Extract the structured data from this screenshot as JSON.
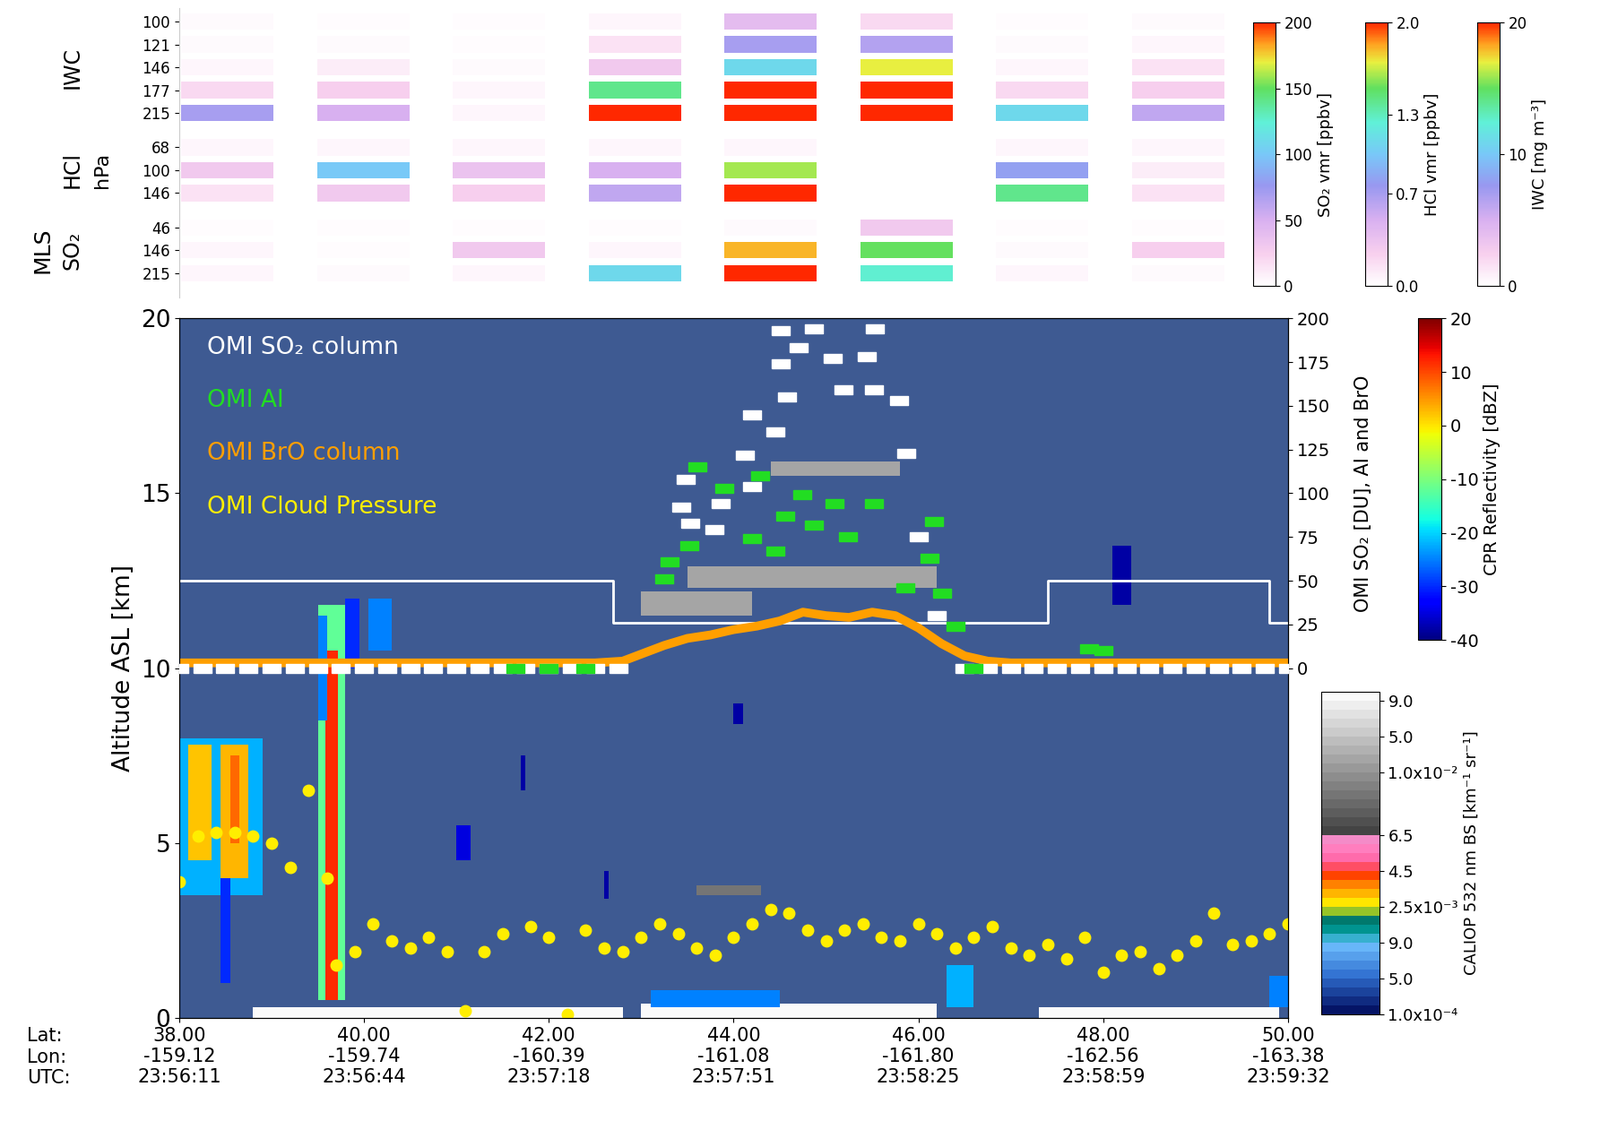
{
  "chart_data": {
    "type": "curtain",
    "xlim": [
      38,
      50
    ],
    "xticks": [
      {
        "value": 38,
        "label": "38.00\n-159.12\n23:56:11"
      },
      {
        "value": 40,
        "label": "40.00\n-159.74\n23:56:44"
      },
      {
        "value": 42,
        "label": "42.00\n-160.39\n23:57:18"
      },
      {
        "value": 44,
        "label": "44.00\n-161.08\n23:57:51"
      },
      {
        "value": 46,
        "label": "46.00\n-161.80\n23:58:25"
      },
      {
        "value": 48,
        "label": "48.00\n-162.56\n23:58:59"
      },
      {
        "value": 50,
        "label": "50.00\n-163.38\n23:59:32"
      }
    ],
    "x_row_labels": [
      "Lat:",
      "Lon:",
      "UTC:"
    ],
    "y_label": "Altitude ASL [km]",
    "ylim": [
      0,
      20
    ],
    "yticks": [
      0,
      5,
      10,
      15,
      20
    ],
    "y2_label": "OMI SO₂ [DU], AI and BrO",
    "y2lim": [
      -200,
      200
    ],
    "y2ticks": [
      0,
      25,
      50,
      75,
      100,
      125,
      150,
      175,
      200
    ],
    "series": [
      {
        "name": "OMI SO₂ column",
        "type": "scatter",
        "color": "#ffffff",
        "marker": "rectangle",
        "axis": "y2",
        "x": [
          38.0,
          38.25,
          38.5,
          38.75,
          39.0,
          39.25,
          39.5,
          39.75,
          40.0,
          40.25,
          40.5,
          40.75,
          41.0,
          41.25,
          41.5,
          41.75,
          42.0,
          42.25,
          42.5,
          42.75,
          43.43,
          43.48,
          43.53,
          43.79,
          43.86,
          44.12,
          44.2,
          44.2,
          44.45,
          44.51,
          44.51,
          44.58,
          44.7,
          44.87,
          45.07,
          45.19,
          45.44,
          45.52,
          45.53,
          45.79,
          45.87,
          46.0,
          46.2,
          46.5,
          46.75,
          47.0,
          47.25,
          47.5,
          47.75,
          48.0,
          48.25,
          48.5,
          48.75,
          49.0,
          49.25,
          49.5,
          49.75,
          50.0
        ],
        "values": [
          0,
          0,
          0,
          0,
          0,
          0,
          0,
          0,
          0,
          0,
          0,
          0,
          0,
          0,
          0,
          0,
          0,
          0,
          0,
          0,
          92,
          108,
          83,
          79,
          94,
          122,
          104,
          145,
          135,
          193,
          174,
          155,
          183,
          194,
          177,
          159,
          178,
          159,
          194,
          153,
          123,
          75,
          30,
          0,
          0,
          0,
          0,
          0,
          0,
          0,
          0,
          0,
          0,
          0,
          0,
          0,
          0,
          0
        ]
      },
      {
        "name": "OMI AI",
        "type": "scatter",
        "color": "#22dd22",
        "marker": "rectangle",
        "axis": "y2",
        "x": [
          41.64,
          42.0,
          42.4,
          43.25,
          43.31,
          43.52,
          43.61,
          43.9,
          44.2,
          44.29,
          44.45,
          44.56,
          44.74,
          44.87,
          45.09,
          45.24,
          45.52,
          45.86,
          46.12,
          46.17,
          46.26,
          46.4,
          46.6,
          47.85,
          48.0
        ],
        "values": [
          0,
          0,
          0,
          51,
          61,
          70,
          115,
          103,
          74,
          110,
          67,
          87,
          99,
          82,
          94,
          75,
          94,
          46,
          63,
          84,
          43,
          24,
          0,
          11,
          10
        ]
      },
      {
        "name": "OMI BrO column",
        "type": "line",
        "color": "#ff9f00",
        "line_style": "solid",
        "axis": "y2",
        "x": [
          38.0,
          38.5,
          39.0,
          39.5,
          40.0,
          40.5,
          41.0,
          41.5,
          42.0,
          42.5,
          42.8,
          43.0,
          43.25,
          43.5,
          43.75,
          44.0,
          44.25,
          44.5,
          44.75,
          45.0,
          45.25,
          45.5,
          45.75,
          46.0,
          46.25,
          46.5,
          46.75,
          47.0,
          47.5,
          48.0,
          48.5,
          49.0,
          49.5,
          50.0
        ],
        "values": [
          3,
          3,
          3,
          3,
          3,
          3,
          3,
          3,
          3,
          3,
          4,
          8,
          13,
          17,
          19,
          22,
          24,
          27,
          32,
          30,
          29,
          32,
          30,
          23,
          14,
          7,
          4,
          3,
          3,
          3,
          3,
          3,
          3,
          3
        ]
      },
      {
        "name": "OMI Cloud Pressure",
        "type": "scatter",
        "color": "#ffee00",
        "marker": "ellipse",
        "x": [
          38.0,
          38.2,
          38.4,
          38.6,
          38.8,
          39.0,
          39.2,
          39.4,
          39.6,
          39.7,
          39.9,
          40.1,
          40.3,
          40.5,
          40.7,
          40.9,
          41.1,
          41.3,
          41.5,
          41.8,
          42.0,
          42.2,
          42.4,
          42.6,
          42.8,
          43.0,
          43.2,
          43.4,
          43.6,
          43.8,
          44.0,
          44.2,
          44.4,
          44.6,
          44.8,
          45.0,
          45.2,
          45.4,
          45.6,
          45.8,
          46.0,
          46.2,
          46.4,
          46.6,
          46.8,
          47.0,
          47.2,
          47.4,
          47.6,
          47.8,
          48.0,
          48.2,
          48.4,
          48.6,
          48.8,
          49.0,
          49.2,
          49.4,
          49.6,
          49.8,
          50.0
        ],
        "values": [
          3.9,
          5.2,
          5.3,
          5.3,
          5.2,
          5.0,
          4.3,
          6.5,
          4.0,
          1.5,
          1.9,
          2.7,
          2.2,
          2.0,
          2.3,
          1.9,
          0.2,
          1.9,
          2.4,
          2.6,
          2.3,
          0.1,
          2.5,
          2.0,
          1.9,
          2.3,
          2.7,
          2.4,
          2.0,
          1.8,
          2.3,
          2.7,
          3.1,
          3.0,
          2.5,
          2.2,
          2.5,
          2.7,
          2.3,
          2.2,
          2.7,
          2.4,
          2.0,
          2.3,
          2.6,
          2.0,
          1.8,
          2.1,
          1.7,
          2.3,
          1.3,
          1.8,
          1.9,
          1.4,
          1.8,
          2.2,
          3.0,
          2.1,
          2.2,
          2.4,
          2.7
        ]
      },
      {
        "type": "step",
        "color": "#ffffff",
        "x": [
          38.0,
          42.7,
          47.4,
          49.8,
          50.0
        ],
        "values": [
          12.5,
          11.3,
          12.5,
          11.3,
          11.3
        ]
      }
    ],
    "cpr": {
      "label": "CPR Reflectivity [dBZ]",
      "range": [
        -40,
        20
      ],
      "ticks": [
        -40,
        -30,
        -20,
        -10,
        0,
        10,
        20
      ],
      "cells": [
        {
          "lat": [
            38.0,
            38.9
          ],
          "alt": [
            3.5,
            8.0
          ],
          "dbz": -22
        },
        {
          "lat": [
            38.1,
            38.35
          ],
          "alt": [
            4.5,
            7.8
          ],
          "dbz": 2
        },
        {
          "lat": [
            38.45,
            38.75
          ],
          "alt": [
            4.0,
            7.8
          ],
          "dbz": 3
        },
        {
          "lat": [
            38.55,
            38.65
          ],
          "alt": [
            5.0,
            7.5
          ],
          "dbz": 8
        },
        {
          "lat": [
            38.45,
            38.55
          ],
          "alt": [
            1.0,
            4.0
          ],
          "dbz": -30
        },
        {
          "lat": [
            39.5,
            39.8
          ],
          "alt": [
            0.5,
            11.8
          ],
          "dbz": -12
        },
        {
          "lat": [
            39.58,
            39.72
          ],
          "alt": [
            0.5,
            10.5
          ],
          "dbz": 12
        },
        {
          "lat": [
            39.5,
            39.6
          ],
          "alt": [
            8.5,
            11.5
          ],
          "dbz": -25
        },
        {
          "lat": [
            39.8,
            39.95
          ],
          "alt": [
            10.0,
            12.0
          ],
          "dbz": -30
        },
        {
          "lat": [
            40.05,
            40.3
          ],
          "alt": [
            10.5,
            12.0
          ],
          "dbz": -25
        },
        {
          "lat": [
            41.0,
            41.15
          ],
          "alt": [
            4.5,
            5.5
          ],
          "dbz": -35
        },
        {
          "lat": [
            41.7,
            41.75
          ],
          "alt": [
            6.5,
            7.5
          ],
          "dbz": -38
        },
        {
          "lat": [
            42.6,
            42.65
          ],
          "alt": [
            3.4,
            4.2
          ],
          "dbz": -38
        },
        {
          "lat": [
            43.1,
            44.5
          ],
          "alt": [
            0.3,
            0.8
          ],
          "dbz": -25
        },
        {
          "lat": [
            44.0,
            44.1
          ],
          "alt": [
            8.4,
            9.0
          ],
          "dbz": -38
        },
        {
          "lat": [
            46.3,
            46.6
          ],
          "alt": [
            0.3,
            1.5
          ],
          "dbz": -22
        },
        {
          "lat": [
            48.1,
            48.3
          ],
          "alt": [
            11.8,
            13.5
          ],
          "dbz": -38
        },
        {
          "lat": [
            49.8,
            50.0
          ],
          "alt": [
            0.3,
            1.2
          ],
          "dbz": -25
        }
      ]
    },
    "caliop": {
      "label": "CALIOP 532 nm BS [km⁻¹ sr⁻¹]",
      "boundaries": [
        0.0001,
        0.0002,
        0.0003,
        0.0004,
        0.0005,
        0.0006,
        0.0007,
        0.0008,
        0.0009,
        0.001,
        0.0015,
        0.002,
        0.0025,
        0.003,
        0.0035,
        0.004,
        0.0045,
        0.005,
        0.0055,
        0.006,
        0.0065,
        0.007,
        0.0075,
        0.008,
        0.0085,
        0.009,
        0.0095,
        0.01,
        0.02,
        0.03,
        0.04,
        0.05,
        0.06,
        0.07,
        0.08,
        0.09,
        0.1
      ],
      "ticks": [
        {
          "value": 0.0001,
          "label": "1.0x10⁻⁴"
        },
        {
          "value": 0.0005,
          "label": "5.0"
        },
        {
          "value": 0.0009,
          "label": "9.0"
        },
        {
          "value": 0.0025,
          "label": "2.5x10⁻³"
        },
        {
          "value": 0.0045,
          "label": "4.5"
        },
        {
          "value": 0.0065,
          "label": "6.5"
        },
        {
          "value": 0.01,
          "label": "1.0x10⁻²"
        },
        {
          "value": 0.05,
          "label": "5.0"
        },
        {
          "value": 0.09,
          "label": "9.0"
        }
      ],
      "cells": [
        {
          "lat": [
            38.8,
            42.8
          ],
          "alt": [
            0.0,
            0.3
          ],
          "bs": 0.09
        },
        {
          "lat": [
            43.0,
            46.2
          ],
          "alt": [
            0.0,
            0.4
          ],
          "bs": 0.09
        },
        {
          "lat": [
            47.3,
            49.9
          ],
          "alt": [
            0.0,
            0.3
          ],
          "bs": 0.09
        },
        {
          "lat": [
            44.4,
            45.8
          ],
          "alt": [
            15.5,
            15.9
          ],
          "bs": 0.02
        },
        {
          "lat": [
            43.5,
            46.2
          ],
          "alt": [
            12.3,
            12.9
          ],
          "bs": 0.02
        },
        {
          "lat": [
            43.0,
            44.2
          ],
          "alt": [
            11.5,
            12.2
          ],
          "bs": 0.02
        },
        {
          "lat": [
            43.6,
            44.3
          ],
          "alt": [
            3.5,
            3.8
          ],
          "bs": 0.0085
        }
      ]
    },
    "mls": {
      "label": "MLS",
      "unit": "hPa",
      "profile_lat": [
        38.52,
        39.99,
        41.46,
        42.93,
        44.4,
        45.87,
        47.34,
        48.81
      ],
      "species": [
        {
          "name": "IWC",
          "levels": [
            100,
            121,
            146,
            177,
            215
          ],
          "values": [
            [
              0.3,
              0.2,
              0.2,
              0.5,
              4,
              2,
              0.2,
              0.3
            ],
            [
              0.3,
              0.3,
              0.2,
              1.5,
              7,
              6.5,
              0.3,
              0.5
            ],
            [
              0.5,
              1,
              0.3,
              3,
              11,
              17,
              0.5,
              1.5
            ],
            [
              2,
              2.5,
              0.5,
              14,
              20,
              20,
              2,
              2.5
            ],
            [
              7,
              5,
              0.5,
              20,
              20,
              20,
              11,
              6
            ]
          ],
          "colorbar": {
            "label": "IWC [mg m⁻³]",
            "range": [
              0,
              20
            ],
            "ticks": [
              0,
              10,
              20
            ]
          }
        },
        {
          "name": "HCl",
          "levels": [
            68,
            100,
            146
          ],
          "values": [
            [
              0.05,
              0.05,
              0.05,
              0.05,
              0.05,
              null,
              0.05,
              0.05
            ],
            [
              0.3,
              1.0,
              0.35,
              0.5,
              1.6,
              null,
              0.8,
              0.1
            ],
            [
              0.15,
              0.3,
              0.25,
              0.6,
              2.0,
              null,
              1.4,
              0.15
            ]
          ],
          "colorbar": {
            "label": "HCl vmr [ppbv]",
            "range": [
              0,
              2
            ],
            "ticks": [
              {
                "value": 0,
                "label": "0.0"
              },
              0.7,
              1.3,
              {
                "value": 2,
                "label": "2.0"
              }
            ]
          }
        },
        {
          "name": "SO₂",
          "levels": [
            46,
            146,
            215
          ],
          "values": [
            [
              2,
              2,
              2,
              2,
              3,
              30,
              2,
              2
            ],
            [
              5,
              2,
              30,
              5,
              180,
              150,
              3,
              25
            ],
            [
              5,
              3,
              5,
              110,
              200,
              125,
              5,
              3
            ]
          ],
          "colorbar": {
            "label": "SO₂ vmr [ppbv]",
            "range": [
              0,
              200
            ],
            "ticks": [
              0,
              50,
              100,
              150,
              200
            ]
          }
        }
      ]
    }
  }
}
